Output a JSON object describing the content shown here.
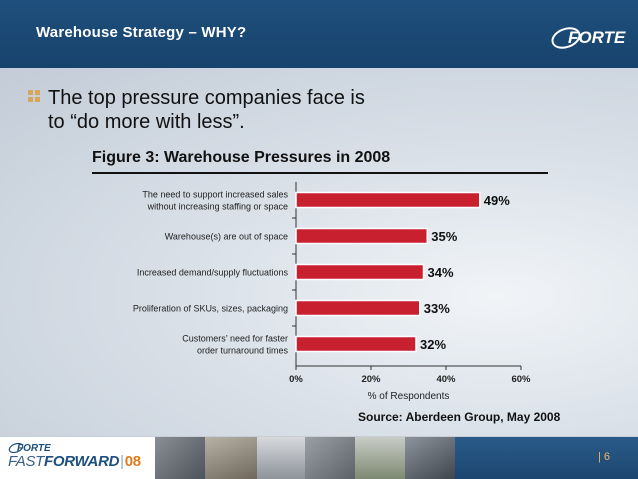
{
  "header": {
    "title": "Warehouse Strategy – WHY?",
    "logo_text": "FORTE"
  },
  "bullet": {
    "text": "The top pressure companies face is to “do more with less”."
  },
  "chart_data": {
    "type": "bar",
    "orientation": "horizontal",
    "title": "Figure 3: Warehouse Pressures in 2008",
    "categories": [
      "The need to support increased sales without increasing staffing or space",
      "Warehouse(s) are out of space",
      "Increased demand/supply fluctuations",
      "Proliferation of SKUs, sizes, packaging",
      "Customers’ need for faster order turnaround times"
    ],
    "category_lines": [
      [
        "The need to support increased sales",
        "without increasing staffing or space"
      ],
      [
        "Warehouse(s) are out of space"
      ],
      [
        "Increased demand/supply fluctuations"
      ],
      [
        "Proliferation of SKUs, sizes, packaging"
      ],
      [
        "Customers’ need for faster",
        "order turnaround times"
      ]
    ],
    "values": [
      49,
      35,
      34,
      33,
      32
    ],
    "value_labels": [
      "49%",
      "35%",
      "34%",
      "33%",
      "32%"
    ],
    "xlim": [
      0,
      60
    ],
    "xticks": [
      0,
      20,
      40,
      60
    ],
    "xtick_labels": [
      "0%",
      "20%",
      "40%",
      "60%"
    ],
    "xlabel": "% of Respondents",
    "bar_color": "#c8202f",
    "grid": false,
    "source": "Source: Aberdeen Group, May 2008"
  },
  "footer": {
    "logo_text": "FORTE",
    "brand_a": "FAST",
    "brand_b": "FORWARD",
    "separator": "|",
    "year": "08",
    "page_number": "| 6"
  }
}
